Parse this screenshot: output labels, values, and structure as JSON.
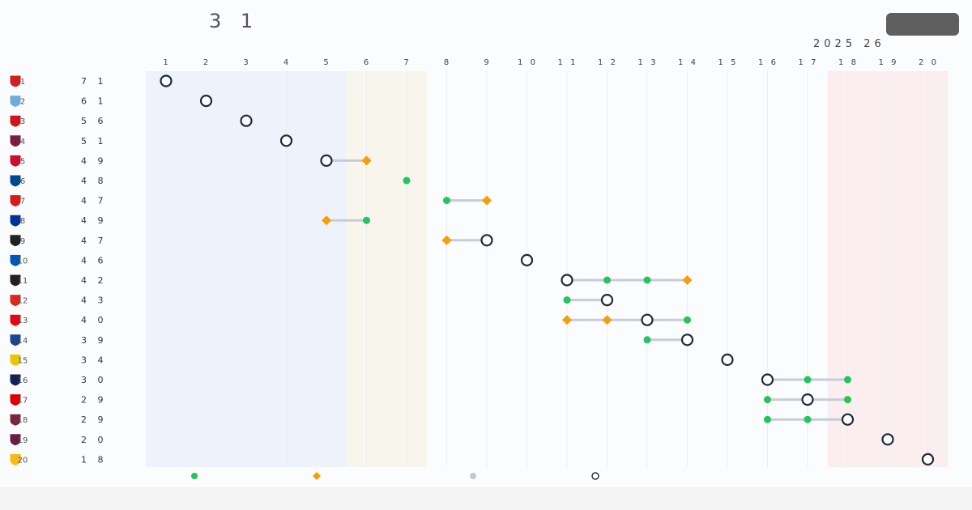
{
  "header": {
    "title": "3 1",
    "season": "2025 26"
  },
  "chart_data": {
    "type": "scatter",
    "x_ticks": [
      1,
      2,
      3,
      4,
      5,
      6,
      7,
      8,
      9,
      10,
      11,
      12,
      13,
      14,
      15,
      16,
      17,
      18,
      19,
      20
    ],
    "xlim": [
      1,
      20
    ],
    "zones": [
      {
        "from": 1,
        "to": 5,
        "color": "#eef3fb"
      },
      {
        "from": 6,
        "to": 7,
        "color": "#f8f6ec"
      },
      {
        "from": 18,
        "to": 20,
        "color": "#faeeee"
      }
    ],
    "legend_placement": "bottom",
    "colors": {
      "up": "#22c55e",
      "down": "#f59e0b",
      "other": "#c8c8c8",
      "current": "#1f2937",
      "connector": "#c7cdd6"
    },
    "rows": [
      {
        "pos": "1",
        "points": "7 1",
        "crest": "#cc2222",
        "current": 1,
        "markers": []
      },
      {
        "pos": "2",
        "points": "6 1",
        "crest": "#6caddf",
        "current": 2,
        "markers": []
      },
      {
        "pos": "3",
        "points": "5 6",
        "crest": "#d0151c",
        "current": 3,
        "markers": []
      },
      {
        "pos": "4",
        "points": "5 1",
        "crest": "#7a1d3f",
        "current": 4,
        "markers": []
      },
      {
        "pos": "5",
        "points": "4 9",
        "crest": "#c8102e",
        "current": 5,
        "markers": [
          {
            "x": 6,
            "kind": "down"
          }
        ]
      },
      {
        "pos": "6",
        "points": "4 8",
        "crest": "#034694",
        "current": null,
        "markers": [
          {
            "x": 7,
            "kind": "up"
          }
        ]
      },
      {
        "pos": "7",
        "points": "4 7",
        "crest": "#d71920",
        "current": null,
        "markers": [
          {
            "x": 8,
            "kind": "up"
          },
          {
            "x": 9,
            "kind": "down"
          }
        ]
      },
      {
        "pos": "8",
        "points": "4 9",
        "crest": "#003399",
        "current": null,
        "markers": [
          {
            "x": 5,
            "kind": "down"
          },
          {
            "x": 6,
            "kind": "up"
          }
        ]
      },
      {
        "pos": "9",
        "points": "4 7",
        "crest": "#222222",
        "current": 9,
        "markers": [
          {
            "x": 8,
            "kind": "down"
          }
        ]
      },
      {
        "pos": "10",
        "points": "4 6",
        "crest": "#0057b8",
        "current": 10,
        "markers": []
      },
      {
        "pos": "11",
        "points": "4 2",
        "crest": "#241f20",
        "current": 11,
        "markers": [
          {
            "x": 12,
            "kind": "up"
          },
          {
            "x": 13,
            "kind": "up"
          },
          {
            "x": 14,
            "kind": "down"
          }
        ]
      },
      {
        "pos": "12",
        "points": "4 3",
        "crest": "#da291c",
        "current": 12,
        "markers": [
          {
            "x": 11,
            "kind": "up"
          }
        ]
      },
      {
        "pos": "13",
        "points": "4 0",
        "crest": "#e30613",
        "current": 13,
        "markers": [
          {
            "x": 11,
            "kind": "down"
          },
          {
            "x": 12,
            "kind": "down"
          },
          {
            "x": 14,
            "kind": "up"
          }
        ]
      },
      {
        "pos": "14",
        "points": "3 9",
        "crest": "#1b458f",
        "current": 14,
        "markers": [
          {
            "x": 13,
            "kind": "up"
          }
        ]
      },
      {
        "pos": "15",
        "points": "3 4",
        "crest": "#e8c600",
        "current": 15,
        "markers": []
      },
      {
        "pos": "16",
        "points": "3 0",
        "crest": "#132257",
        "current": 16,
        "markers": [
          {
            "x": 17,
            "kind": "up"
          },
          {
            "x": 18,
            "kind": "up"
          }
        ]
      },
      {
        "pos": "17",
        "points": "2 9",
        "crest": "#dd0000",
        "current": 17,
        "markers": [
          {
            "x": 16,
            "kind": "up"
          },
          {
            "x": 18,
            "kind": "up"
          }
        ]
      },
      {
        "pos": "18",
        "points": "2 9",
        "crest": "#7a263a",
        "current": 18,
        "markers": [
          {
            "x": 16,
            "kind": "up"
          },
          {
            "x": 17,
            "kind": "up"
          }
        ]
      },
      {
        "pos": "19",
        "points": "2 0",
        "crest": "#6c1d45",
        "current": 19,
        "markers": []
      },
      {
        "pos": "20",
        "points": "1 8",
        "crest": "#fdb913",
        "current": 20,
        "markers": []
      }
    ]
  }
}
